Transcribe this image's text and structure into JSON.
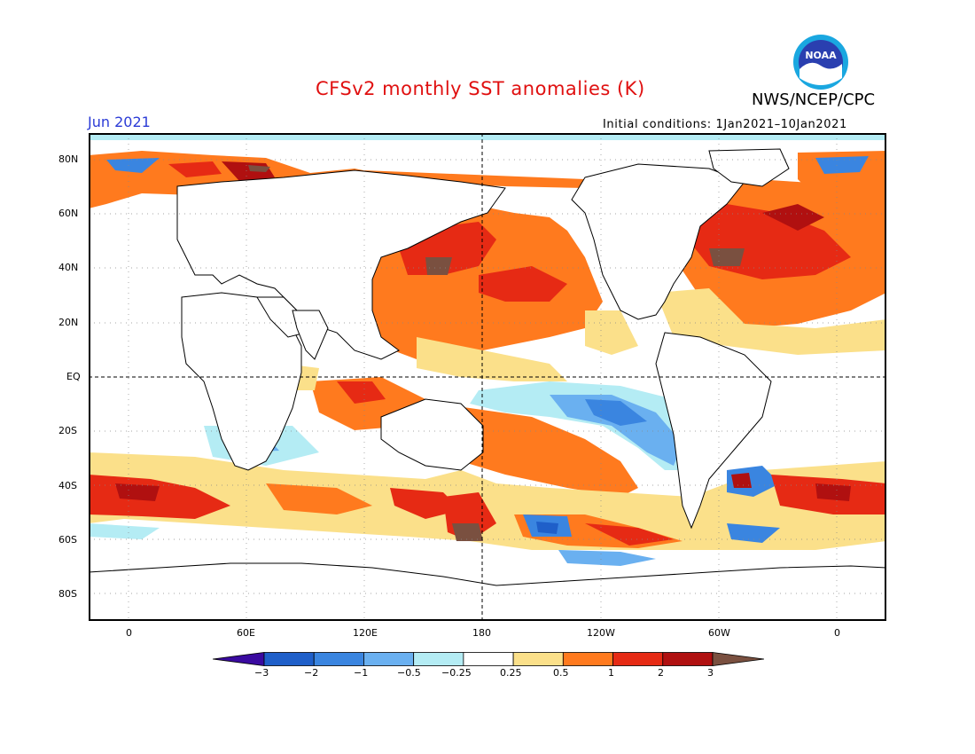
{
  "title": "CFSv2 monthly SST anomalies (K)",
  "agency": "NWS/NCEP/CPC",
  "logo_text": "NOAA",
  "valid_month": "Jun 2021",
  "initial_conditions": "Initial conditions: 1Jan2021–10Jan2021",
  "lat_labels": [
    "80N",
    "60N",
    "40N",
    "20N",
    "EQ",
    "20S",
    "40S",
    "60S",
    "80S"
  ],
  "lon_labels": [
    "0",
    "60E",
    "120E",
    "180",
    "120W",
    "60W",
    "0"
  ],
  "colorbar": {
    "labels": [
      "−3",
      "−2",
      "−1",
      "−0.5",
      "−0.25",
      "0.25",
      "0.5",
      "1",
      "2",
      "3"
    ],
    "colors": [
      "#3a0aa0",
      "#1f5fc9",
      "#3a85e0",
      "#6ab0f0",
      "#b4ecf4",
      "#ffffff",
      "#fbe08a",
      "#ff7a1e",
      "#e62a14",
      "#b01010",
      "#7a5040"
    ]
  }
}
